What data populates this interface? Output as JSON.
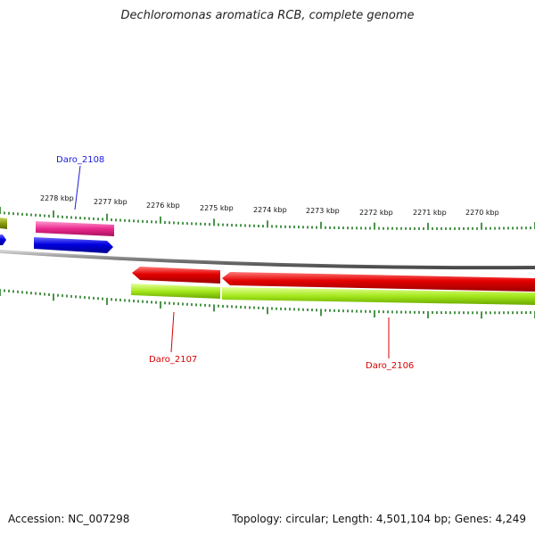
{
  "title": "Dechloromonas aromatica RCB, complete genome",
  "footer": {
    "accession": "Accession: NC_007298",
    "summary": "Topology: circular; Length: 4,501,104 bp; Genes: 4,249"
  },
  "ruler": {
    "ticks": [
      {
        "label": "2278 kbp"
      },
      {
        "label": "2277 kbp"
      },
      {
        "label": "2276 kbp"
      },
      {
        "label": "2275 kbp"
      },
      {
        "label": "2274 kbp"
      },
      {
        "label": "2273 kbp"
      },
      {
        "label": "2272 kbp"
      },
      {
        "label": "2271 kbp"
      },
      {
        "label": "2270 kbp"
      }
    ]
  },
  "genes": [
    {
      "label": "Daro_2108",
      "strand": "plus",
      "color": "#1a1adc"
    },
    {
      "label": "Daro_2107",
      "strand": "minus",
      "color": "#d90000"
    },
    {
      "label": "Daro_2106",
      "strand": "minus",
      "color": "#d90000"
    }
  ],
  "colors": {
    "gene_red": "#e40000",
    "gene_blue": "#0000e0",
    "cog_pink": "#e8208a",
    "cog_green": "#9be01a",
    "cog_olive": "#8a9a10",
    "backbone": "#8a8a8a",
    "tick_green": "#1e7a1e"
  }
}
